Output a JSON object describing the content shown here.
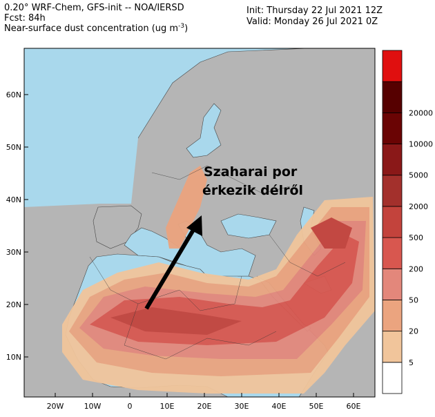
{
  "header": {
    "model": "0.20° WRF-Chem, GFS-init -- NOA/IERSD",
    "forecast": "Fcst: 84h",
    "field": "Near-surface dust concentration (ug m",
    "field_exponent": "-3",
    "field_close": ")",
    "init": "Init: Thursday 22 Jul 2021  12Z",
    "valid": "Valid: Monday 26 Jul 2021   0Z"
  },
  "annotation": [
    "Szaharai por",
    "érkezik délről"
  ],
  "colorbar": {
    "labels": [
      "5",
      "20",
      "50",
      "200",
      "500",
      "2000",
      "5000",
      "10000",
      "20000"
    ],
    "colors": [
      "#ffffff",
      "#f1c59b",
      "#eba47f",
      "#e3877b",
      "#d8574f",
      "#c3433c",
      "#a3302c",
      "#8a1818",
      "#6a0404",
      "#560000",
      "#e00f0f"
    ]
  },
  "lat_labels": [
    "10N",
    "20N",
    "30N",
    "40N",
    "50N",
    "60N"
  ],
  "lon_labels": [
    "20W",
    "10W",
    "0",
    "10E",
    "20E",
    "30E",
    "40E",
    "50E",
    "60E"
  ]
}
